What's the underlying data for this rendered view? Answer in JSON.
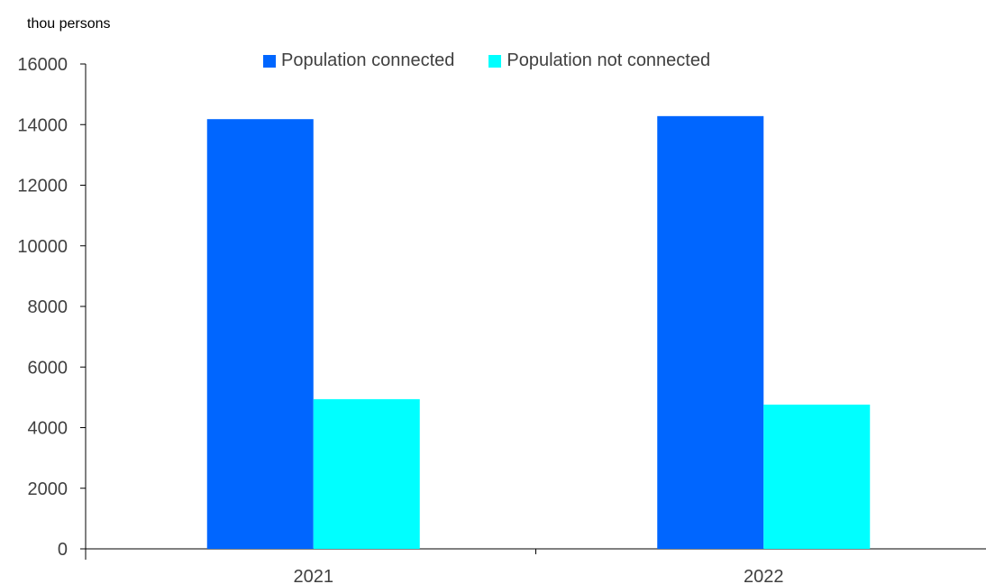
{
  "chart_data": {
    "type": "bar",
    "ylabel": "thou persons",
    "categories": [
      "2021",
      "2022"
    ],
    "series": [
      {
        "name": "Population connected",
        "values": [
          14180,
          14280
        ],
        "color": "#0066ff"
      },
      {
        "name": "Population not connected",
        "values": [
          4940,
          4760
        ],
        "color": "#00ffff"
      }
    ],
    "ylim": [
      0,
      16000
    ],
    "yticks": [
      0,
      2000,
      4000,
      6000,
      8000,
      10000,
      12000,
      14000,
      16000
    ],
    "legend_position": "top",
    "grid": false
  }
}
